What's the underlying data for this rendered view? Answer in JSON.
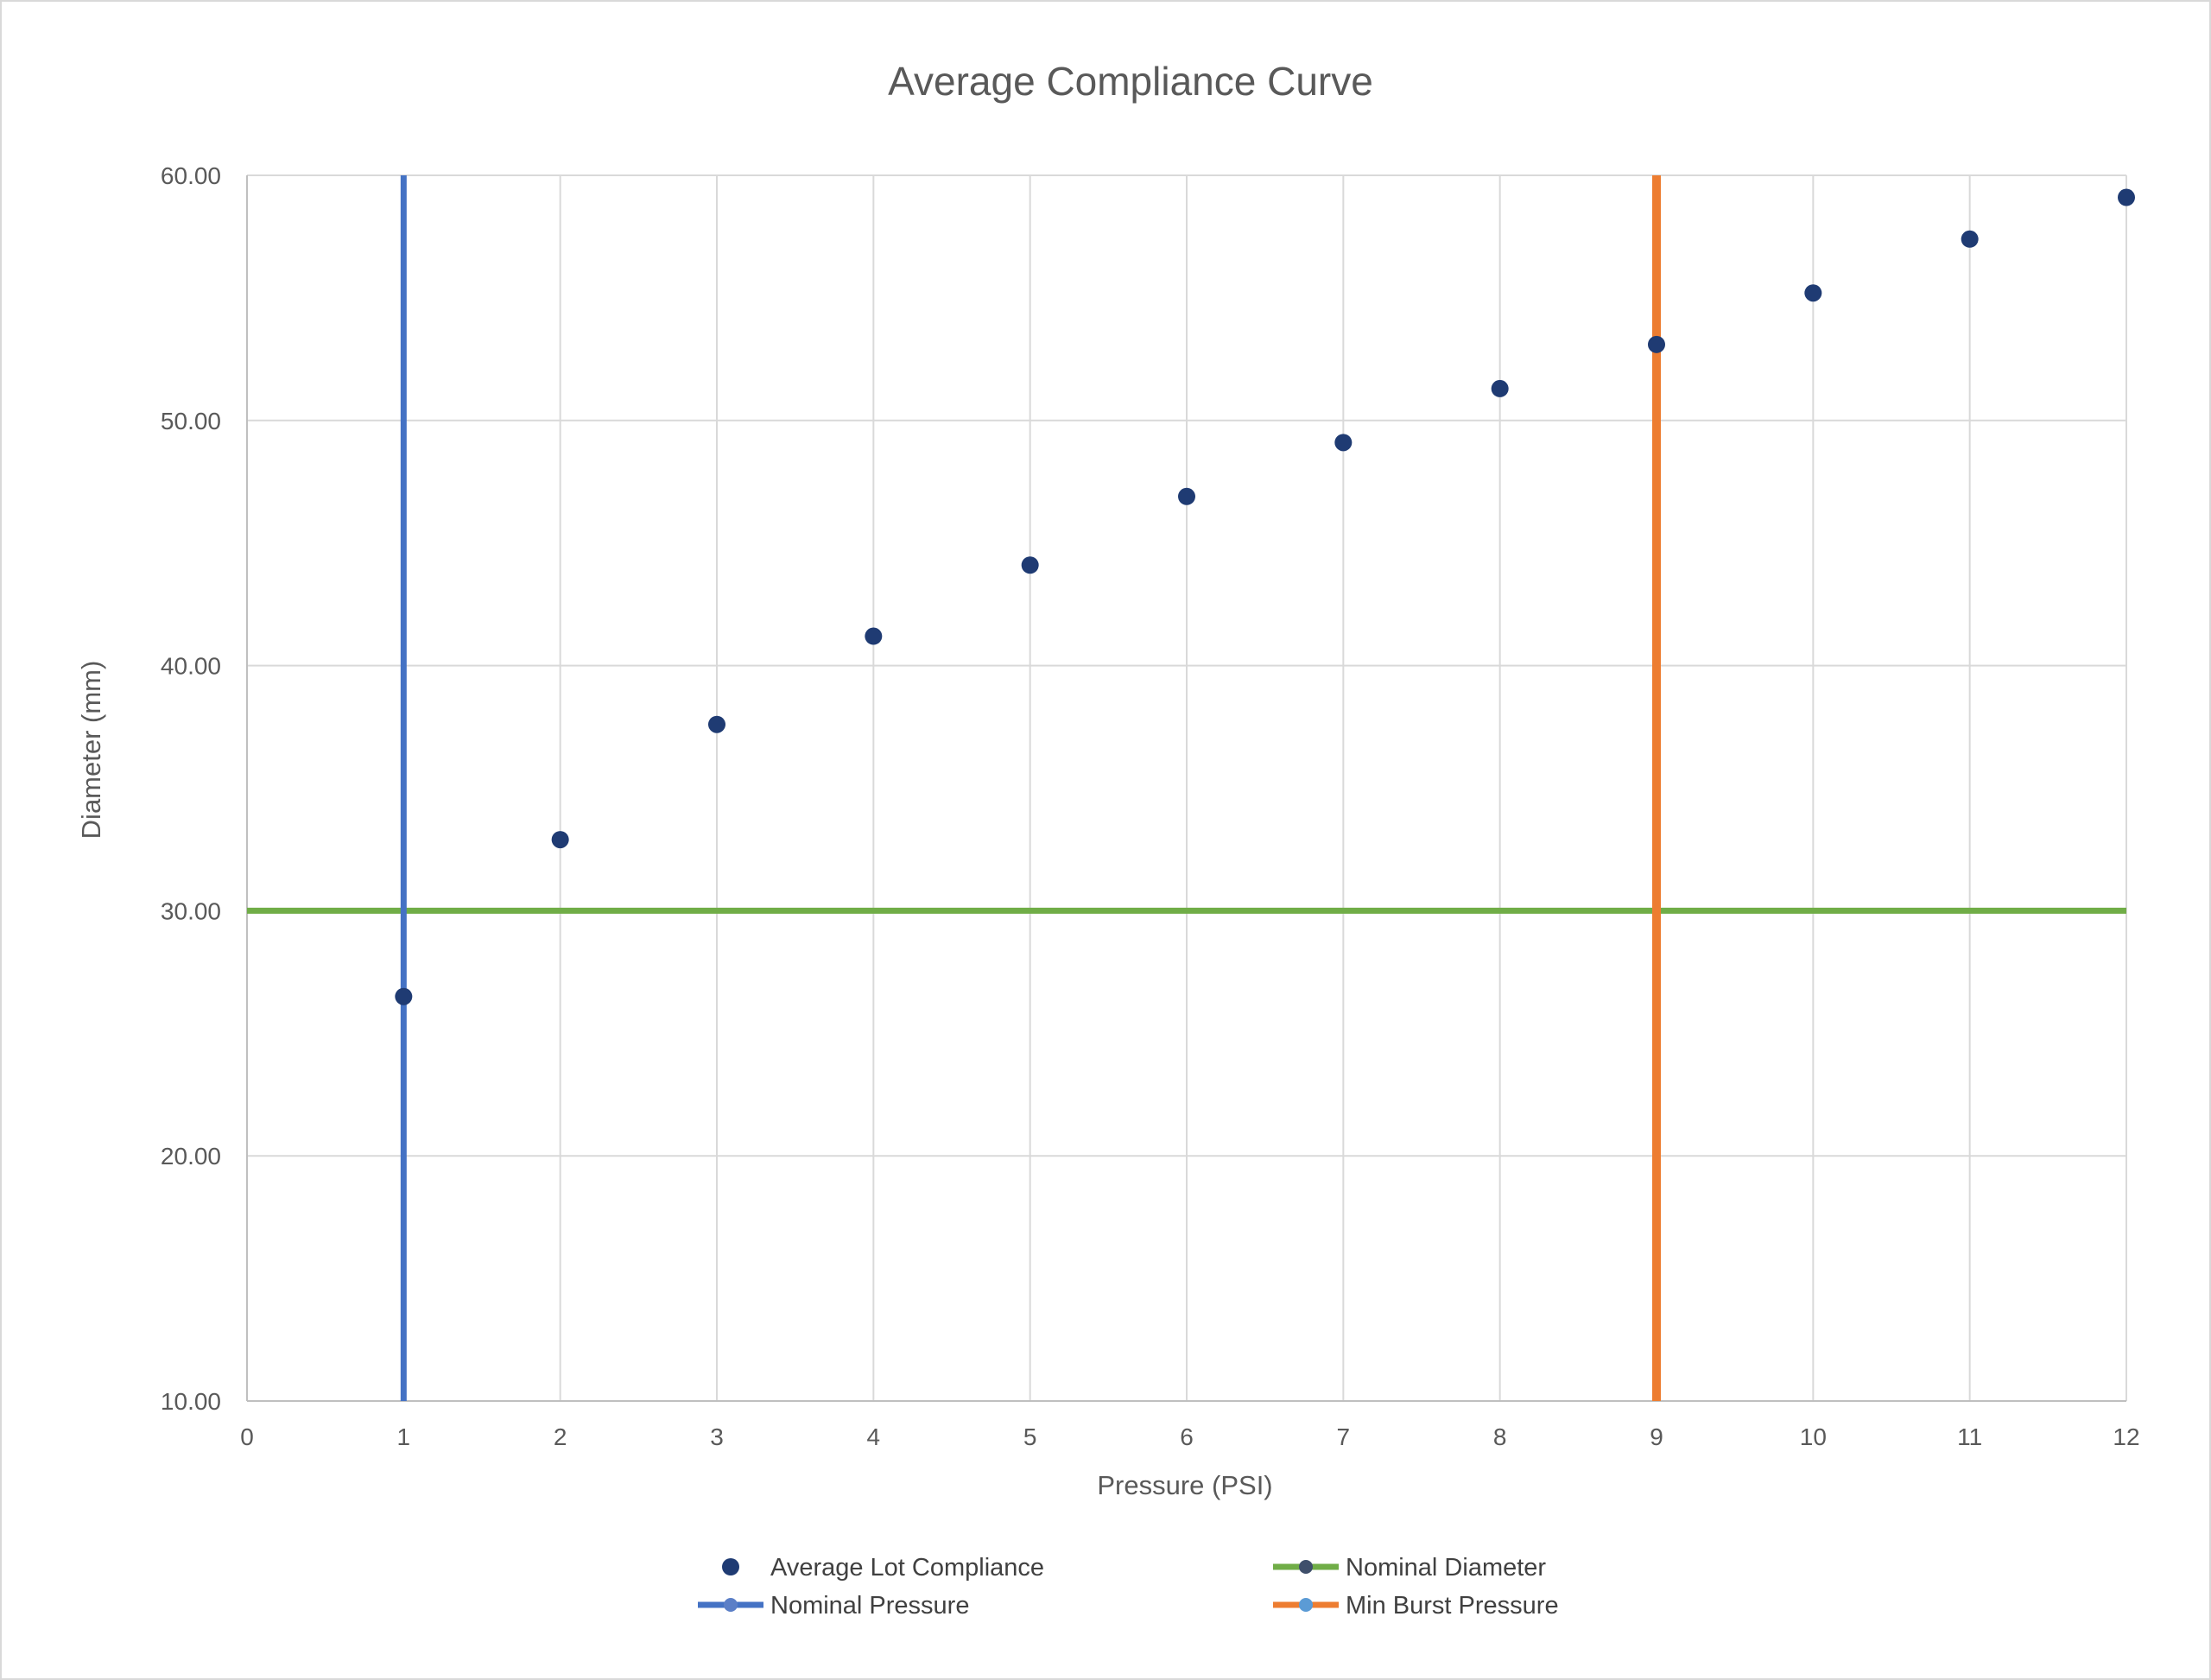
{
  "chart_data": {
    "type": "scatter",
    "title": "Average Compliance Curve",
    "xlabel": "Pressure (PSI)",
    "ylabel": "Diameter (mm)",
    "xlim": [
      0,
      12
    ],
    "ylim": [
      10,
      60
    ],
    "x_ticks": [
      "0",
      "1",
      "2",
      "3",
      "4",
      "5",
      "6",
      "7",
      "8",
      "9",
      "10",
      "11",
      "12"
    ],
    "y_ticks": [
      "10.00",
      "20.00",
      "30.00",
      "40.00",
      "50.00",
      "60.00"
    ],
    "grid": true,
    "legend_position": "bottom",
    "series": [
      {
        "name": "Average Lot Compliance",
        "kind": "points",
        "color": "#1f3b73",
        "x": [
          1,
          2,
          3,
          4,
          5,
          6,
          7,
          8,
          9,
          10,
          11,
          12
        ],
        "y": [
          26.5,
          32.9,
          37.6,
          41.2,
          44.1,
          46.9,
          49.1,
          51.3,
          53.1,
          55.2,
          57.4,
          59.1
        ]
      },
      {
        "name": "Nominal Diameter",
        "kind": "horizontal-line",
        "color": "#70ad47",
        "marker_color": "#3f4f6b",
        "x": [
          0,
          12
        ],
        "y": [
          30,
          30
        ]
      },
      {
        "name": "Nominal Pressure",
        "kind": "vertical-line",
        "color": "#4472c4",
        "marker_color": "#5b7fc7",
        "x": [
          1,
          1
        ],
        "y": [
          10,
          60
        ]
      },
      {
        "name": "Min Burst Pressure",
        "kind": "vertical-line",
        "color": "#ed7d31",
        "marker_color": "#5b9bd5",
        "x": [
          9,
          9
        ],
        "y": [
          10,
          60
        ]
      }
    ]
  }
}
